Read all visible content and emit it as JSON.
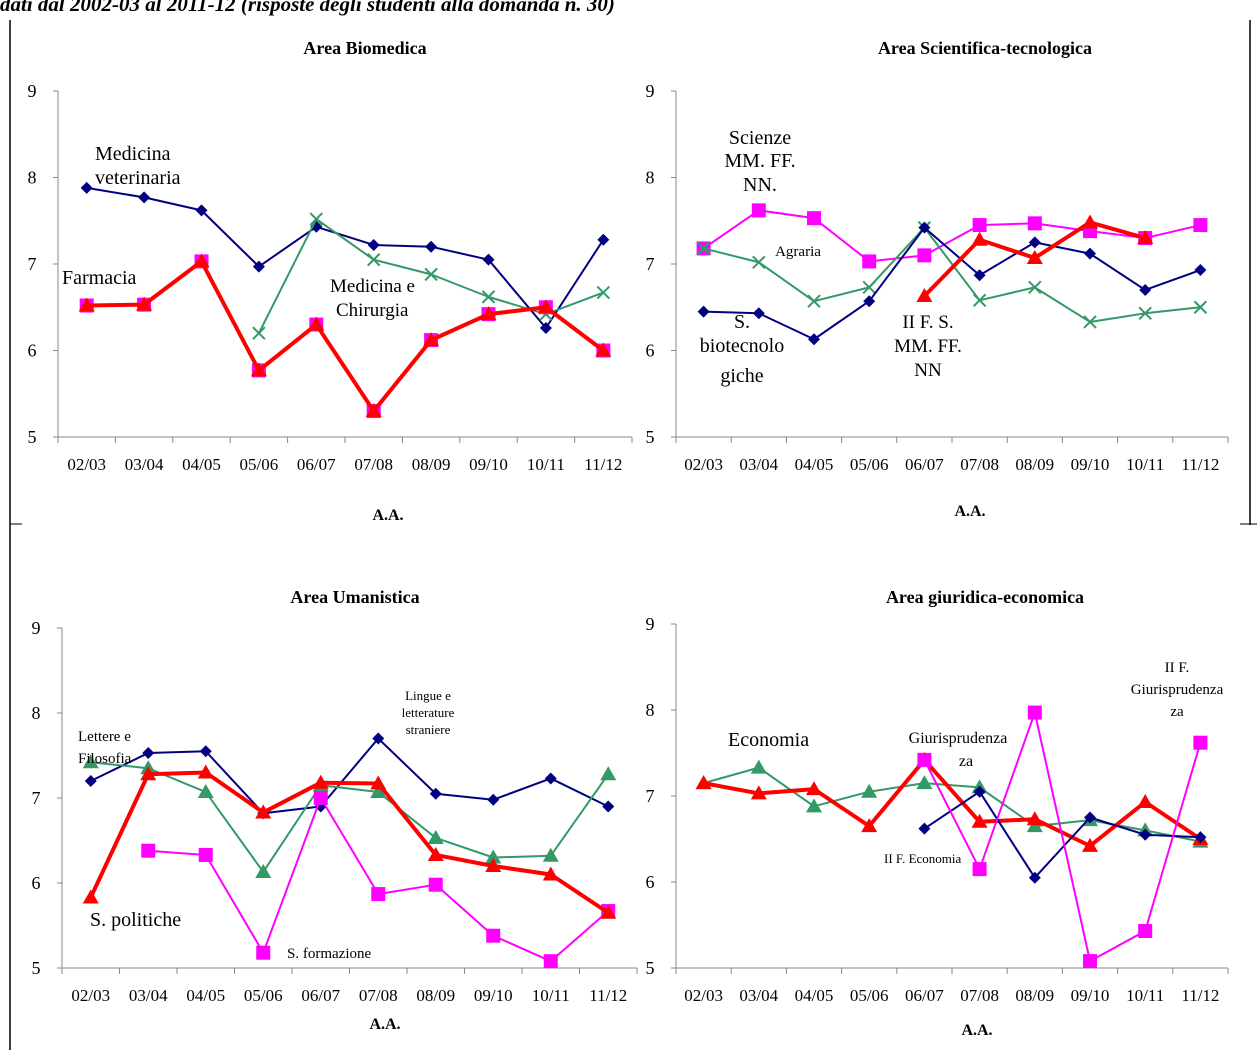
{
  "header": {
    "text": "dati dal 2002-03 al 2011-12  (risposte degli studenti alla domanda n. 30)"
  },
  "chart_data": [
    {
      "type": "line",
      "title": "Area Biomedica",
      "xlabel": "A.A.",
      "ylabel": "",
      "categories": [
        "02/03",
        "03/04",
        "04/05",
        "05/06",
        "06/07",
        "07/08",
        "08/09",
        "09/10",
        "10/11",
        "11/12"
      ],
      "ylim": [
        5,
        9
      ],
      "yticks": [
        5,
        6,
        7,
        8,
        9
      ],
      "grid": false,
      "series": [
        {
          "name": "Medicina veterinaria",
          "color": "#000080",
          "marker": "diamond",
          "width": 2,
          "values": [
            7.88,
            7.77,
            7.62,
            6.97,
            7.43,
            7.22,
            7.2,
            7.05,
            6.26,
            7.28
          ]
        },
        {
          "name": "Medicina e Chirurgia",
          "color": "#339966",
          "marker": "x",
          "width": 2,
          "values": [
            null,
            null,
            null,
            6.2,
            7.52,
            7.05,
            6.88,
            6.62,
            6.42,
            6.67
          ]
        },
        {
          "name": "Farmacia (pink)",
          "color": "#ff00ff",
          "marker": "square",
          "width": 2,
          "values": [
            6.52,
            6.53,
            7.03,
            5.77,
            6.3,
            5.3,
            6.12,
            6.42,
            6.5,
            6.0
          ]
        },
        {
          "name": "Farmacia (red)",
          "color": "#ff0000",
          "marker": "triangle",
          "width": 4,
          "values": [
            6.52,
            6.53,
            7.03,
            5.77,
            6.3,
            5.3,
            6.12,
            6.42,
            6.5,
            6.0
          ]
        }
      ],
      "annotations": [
        "Medicina",
        "veterinaria",
        "Farmacia",
        "Medicina e",
        "Chirurgia"
      ]
    },
    {
      "type": "line",
      "title": "Area Scientifica-tecnologica",
      "xlabel": "A.A.",
      "ylabel": "",
      "categories": [
        "02/03",
        "03/04",
        "04/05",
        "05/06",
        "06/07",
        "07/08",
        "08/09",
        "09/10",
        "10/11",
        "11/12"
      ],
      "ylim": [
        5,
        9
      ],
      "yticks": [
        5,
        6,
        7,
        8,
        9
      ],
      "grid": false,
      "series": [
        {
          "name": "Scienze MM. FF. NN.",
          "color": "#ff00ff",
          "marker": "square",
          "width": 2,
          "values": [
            7.18,
            7.62,
            7.53,
            7.03,
            7.1,
            7.45,
            7.47,
            7.38,
            7.3,
            7.45
          ]
        },
        {
          "name": "Agraria",
          "color": "#339966",
          "marker": "x",
          "width": 2,
          "values": [
            7.18,
            7.02,
            6.57,
            6.73,
            7.42,
            6.58,
            6.73,
            6.33,
            6.43,
            6.5
          ]
        },
        {
          "name": "S. biotecnologiche",
          "color": "#000080",
          "marker": "diamond",
          "width": 2,
          "values": [
            6.45,
            6.43,
            6.13,
            6.57,
            7.42,
            6.87,
            7.25,
            7.12,
            6.7,
            6.93
          ]
        },
        {
          "name": "II F. S. MM. FF. NN",
          "color": "#ff0000",
          "marker": "triangle",
          "width": 4,
          "values": [
            null,
            null,
            null,
            null,
            6.63,
            7.28,
            7.07,
            7.48,
            7.3,
            null
          ]
        }
      ],
      "annotations": [
        "Scienze",
        "MM. FF.",
        "NN.",
        "Agraria",
        "S.",
        "biotecnolo",
        "giche",
        "II F. S.",
        "MM. FF.",
        "NN"
      ]
    },
    {
      "type": "line",
      "title": "Area Umanistica",
      "xlabel": "A.A.",
      "ylabel": "",
      "categories": [
        "02/03",
        "03/04",
        "04/05",
        "05/06",
        "06/07",
        "07/08",
        "08/09",
        "09/10",
        "10/11",
        "11/12"
      ],
      "ylim": [
        5,
        9
      ],
      "yticks": [
        5,
        6,
        7,
        8,
        9
      ],
      "grid": false,
      "series": [
        {
          "name": "Lingue e letterature straniere",
          "color": "#000080",
          "marker": "diamond",
          "width": 2,
          "values": [
            7.2,
            7.53,
            7.55,
            6.82,
            6.9,
            7.7,
            7.05,
            6.98,
            7.23,
            6.9
          ]
        },
        {
          "name": "Lettere e Filosofia",
          "color": "#339966",
          "marker": "triangle",
          "width": 2,
          "values": [
            7.42,
            7.35,
            7.07,
            6.13,
            7.15,
            7.07,
            6.53,
            6.3,
            6.32,
            7.28
          ]
        },
        {
          "name": "S. formazione",
          "color": "#ff00ff",
          "marker": "square",
          "width": 2,
          "values": [
            null,
            6.38,
            6.33,
            5.18,
            7.0,
            5.87,
            5.98,
            5.38,
            5.08,
            5.67
          ]
        },
        {
          "name": "S. politiche",
          "color": "#ff0000",
          "marker": "triangle",
          "width": 4,
          "values": [
            5.83,
            7.28,
            7.3,
            6.83,
            7.18,
            7.17,
            6.33,
            6.2,
            6.1,
            5.65
          ]
        }
      ],
      "annotations": [
        "Lettere e",
        "Filosofia",
        "Lingue e",
        "letterature",
        "straniere",
        "S. politiche",
        "S. formazione"
      ]
    },
    {
      "type": "line",
      "title": "Area giuridica-economica",
      "xlabel": "A.A.",
      "ylabel": "",
      "categories": [
        "02/03",
        "03/04",
        "04/05",
        "05/06",
        "06/07",
        "07/08",
        "08/09",
        "09/10",
        "10/11",
        "11/12"
      ],
      "ylim": [
        5,
        9
      ],
      "yticks": [
        5,
        6,
        7,
        8,
        9
      ],
      "grid": false,
      "series": [
        {
          "name": "Economia",
          "color": "#339966",
          "marker": "triangle",
          "width": 2,
          "values": [
            7.15,
            7.33,
            6.88,
            7.05,
            7.15,
            7.1,
            6.65,
            6.72,
            6.6,
            6.47
          ]
        },
        {
          "name": "Giurisprudenza",
          "color": "#ff0000",
          "marker": "triangle",
          "width": 4,
          "values": [
            7.15,
            7.03,
            7.08,
            6.65,
            7.42,
            6.7,
            6.73,
            6.42,
            6.93,
            6.5
          ]
        },
        {
          "name": "II F. Economia",
          "color": "#000080",
          "marker": "diamond",
          "width": 2,
          "values": [
            null,
            null,
            null,
            null,
            6.62,
            7.05,
            6.05,
            6.75,
            6.55,
            6.52
          ]
        },
        {
          "name": "II F. Giurisprudenza",
          "color": "#ff00ff",
          "marker": "square",
          "width": 2,
          "values": [
            null,
            null,
            null,
            null,
            7.42,
            6.15,
            7.97,
            5.08,
            5.43,
            7.62
          ]
        }
      ],
      "annotations": [
        "Economia",
        "Giurisprudenza",
        "za",
        "II F. Economia",
        "II F.",
        "Giurisprudenza",
        "za"
      ]
    }
  ]
}
